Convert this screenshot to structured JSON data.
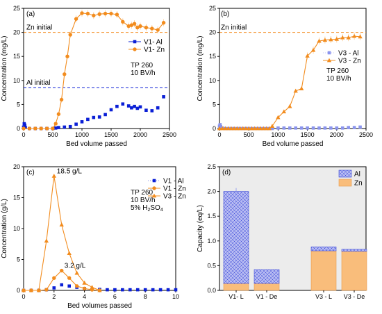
{
  "colors": {
    "al": "#0a1fd6",
    "al_light": "#8a94ee",
    "zn": "#f28c1e",
    "zn_light": "#fbc98e",
    "al_fill": "#b8bcf2",
    "zn_fill": "#f9bd7b"
  },
  "chart_data": [
    {
      "panel": "(a)",
      "type": "scatter",
      "xlabel": "Bed volume passed",
      "ylabel": "Concentration (mg/L)",
      "xlim": [
        0,
        2500
      ],
      "ylim": [
        0,
        25
      ],
      "xticks": [
        0,
        500,
        1000,
        1500,
        2000,
        2500
      ],
      "yticks": [
        0,
        5,
        10,
        15,
        20,
        25
      ],
      "reference_lines": [
        {
          "label": "Zn initial",
          "y": 20,
          "color": "zn"
        },
        {
          "label": "Al initial",
          "y": 8.5,
          "color": "al"
        }
      ],
      "notes": [
        "TP 260",
        "10 BV/h"
      ],
      "legend": {
        "position": "right",
        "entries": [
          "V1- Al",
          "V1- Zn"
        ]
      },
      "series": [
        {
          "name": "V1- Al",
          "color": "al",
          "marker": "square",
          "line": true,
          "line_from": 0,
          "line_to": 3,
          "error_bars": false,
          "x": [
            0,
            10,
            20,
            30,
            100,
            200,
            300,
            400,
            500,
            550,
            600,
            700,
            800,
            900,
            1000,
            1100,
            1200,
            1300,
            1400,
            1500,
            1600,
            1700,
            1800,
            1850,
            1900,
            1950,
            2000,
            2100,
            2200,
            2300,
            2400
          ],
          "y": [
            0.3,
            1.0,
            0.7,
            0.2,
            0,
            0,
            0,
            0,
            0,
            0.1,
            0.2,
            0.3,
            0.4,
            0.9,
            1.4,
            1.9,
            2.3,
            2.4,
            2.9,
            3.9,
            4.6,
            5.1,
            4.7,
            4.3,
            4.6,
            4.2,
            4.5,
            3.8,
            3.7,
            4.3,
            6.6
          ]
        },
        {
          "name": "V1- Zn",
          "color": "zn",
          "marker": "circle",
          "line": true,
          "error_bars": true,
          "x": [
            0,
            100,
            200,
            300,
            400,
            500,
            550,
            600,
            650,
            700,
            750,
            800,
            900,
            1000,
            1100,
            1200,
            1300,
            1400,
            1500,
            1600,
            1700,
            1800,
            1850,
            1900,
            1950,
            2000,
            2100,
            2200,
            2300,
            2400
          ],
          "y": [
            0,
            0,
            0,
            0,
            0,
            0,
            1.0,
            3.0,
            6.0,
            11.3,
            15.0,
            19.5,
            22.8,
            24.0,
            23.9,
            23.5,
            23.8,
            23.9,
            23.9,
            23.7,
            22.2,
            21.3,
            21.5,
            21.8,
            21.0,
            21.3,
            21.0,
            20.8,
            20.5,
            22.0
          ]
        }
      ]
    },
    {
      "panel": "(b)",
      "type": "scatter",
      "xlabel": "Bed volume passed",
      "ylabel": "Concentration (mg/L)",
      "xlim": [
        0,
        2500
      ],
      "ylim": [
        0,
        25
      ],
      "xticks": [
        0,
        500,
        1000,
        1500,
        2000,
        2500
      ],
      "yticks": [
        0,
        5,
        10,
        15,
        20,
        25
      ],
      "reference_lines": [
        {
          "label": "Zn initial",
          "y": 20,
          "color": "zn"
        }
      ],
      "notes": [
        "TP 260",
        "10 BV/h"
      ],
      "legend": {
        "position": "right",
        "entries": [
          "V3 - Al",
          "V3 - Zn"
        ]
      },
      "series": [
        {
          "name": "V3 - Al",
          "color": "al_light",
          "marker": "square",
          "line": false,
          "error_bars": false,
          "x": [
            0,
            10,
            20,
            50,
            100,
            150,
            200,
            250,
            300,
            350,
            400,
            450,
            500,
            550,
            600,
            650,
            700,
            750,
            800,
            850,
            900,
            1000,
            1100,
            1200,
            1300,
            1400,
            1500,
            1600,
            1700,
            1800,
            1900,
            2000,
            2100,
            2200,
            2300,
            2400
          ],
          "y": [
            0.5,
            0.8,
            0.4,
            0.1,
            0,
            0,
            0,
            0,
            0,
            0,
            0,
            0,
            0,
            0,
            0,
            0,
            0,
            0,
            0,
            0,
            0,
            0.1,
            0.1,
            0.1,
            0.1,
            0.1,
            0.1,
            0.1,
            0.1,
            0.1,
            0.1,
            0.1,
            0.1,
            0.2,
            0.2,
            0.3
          ]
        },
        {
          "name": "V3 - Zn",
          "color": "zn",
          "marker": "triangle",
          "line": true,
          "error_bars": true,
          "x": [
            0,
            50,
            100,
            150,
            200,
            250,
            300,
            350,
            400,
            450,
            500,
            550,
            600,
            650,
            700,
            750,
            800,
            850,
            900,
            1000,
            1100,
            1200,
            1300,
            1400,
            1500,
            1600,
            1700,
            1800,
            1900,
            2000,
            2100,
            2200,
            2300,
            2400
          ],
          "y": [
            0,
            0,
            0,
            0,
            0,
            0,
            0,
            0,
            0,
            0,
            0,
            0,
            0,
            0,
            0,
            0,
            0,
            0,
            0.5,
            2.3,
            3.5,
            4.6,
            7.8,
            8.3,
            15.1,
            16.3,
            18.2,
            18.4,
            18.5,
            18.6,
            18.9,
            18.9,
            19.2,
            19.1
          ]
        }
      ]
    },
    {
      "panel": "(c)",
      "type": "scatter",
      "xlabel": "Bed volumes passed",
      "ylabel": "Concentration (g/L)",
      "xlim": [
        0,
        10
      ],
      "ylim": [
        0,
        20
      ],
      "xticks": [
        0,
        2,
        4,
        6,
        8,
        10
      ],
      "yticks": [
        0,
        5,
        10,
        15,
        20
      ],
      "notes": [
        "TP 260",
        "10 BV/h"
      ],
      "note_acid": {
        "prefix": "5% H",
        "sub1": "2",
        "mid": "SO",
        "sub2": "4"
      },
      "annotations": [
        {
          "text": "18.5 g/L",
          "x": 2,
          "y": 18.5
        },
        {
          "text": "3.2 g/L",
          "x": 2.5,
          "y": 3.2
        }
      ],
      "legend": {
        "position": "top-right",
        "entries": [
          "V1 - Al",
          "V1 - Zn",
          "V3 - Zn"
        ]
      },
      "series": [
        {
          "name": "V1 - Al",
          "color": "al",
          "marker": "square",
          "line": false,
          "error_bars": false,
          "x": [
            0,
            0.5,
            1,
            1.5,
            2,
            2.5,
            3,
            3.5,
            4,
            4.5,
            5,
            5.5,
            6,
            6.5,
            7,
            7.5,
            8,
            8.5,
            9,
            9.5,
            10
          ],
          "y": [
            0,
            0,
            0,
            0.1,
            0.4,
            0.9,
            0.7,
            0.5,
            0.3,
            0.2,
            0.15,
            0.1,
            0.1,
            0.1,
            0.1,
            0.1,
            0.1,
            0.1,
            0.1,
            0.1,
            0.1
          ]
        },
        {
          "name": "V1 - Zn",
          "color": "zn",
          "marker": "circle",
          "line": true,
          "error_bars": false,
          "x": [
            0,
            0.5,
            1,
            1.5,
            2,
            2.5,
            3,
            3.5,
            4,
            4.5,
            5
          ],
          "y": [
            0,
            0,
            0,
            0.1,
            2.0,
            3.2,
            2.0,
            0.7,
            0.3,
            0.1,
            0
          ]
        },
        {
          "name": "V3 - Zn",
          "color": "zn",
          "marker": "triangle",
          "line": true,
          "error_bars": false,
          "x": [
            0,
            0.5,
            1,
            1.5,
            2,
            2.5,
            3,
            3.5,
            4,
            4.5,
            5
          ],
          "y": [
            0,
            0,
            0,
            8.0,
            18.5,
            10.6,
            6.0,
            2.8,
            1.2,
            0.5,
            0
          ]
        }
      ]
    },
    {
      "panel": "(d)",
      "type": "bar",
      "stacked": true,
      "ylabel": "Capacity (eq/L)",
      "ylim": [
        0,
        2.5
      ],
      "yticks": [
        0.0,
        0.5,
        1.0,
        1.5,
        2.0,
        2.5
      ],
      "categories": [
        "V1- L",
        "V1 - De",
        "V3 - L",
        "V3 - De"
      ],
      "legend": {
        "position": "top-right",
        "entries": [
          "Al",
          "Zn"
        ]
      },
      "series": [
        {
          "name": "Zn",
          "color": "zn_fill",
          "values": [
            0.14,
            0.14,
            0.8,
            0.79
          ]
        },
        {
          "name": "Al",
          "color": "al_fill",
          "values": [
            1.86,
            0.28,
            0.08,
            0.04
          ]
        }
      ],
      "totals": [
        2.0,
        0.42,
        0.88,
        0.83
      ]
    }
  ]
}
